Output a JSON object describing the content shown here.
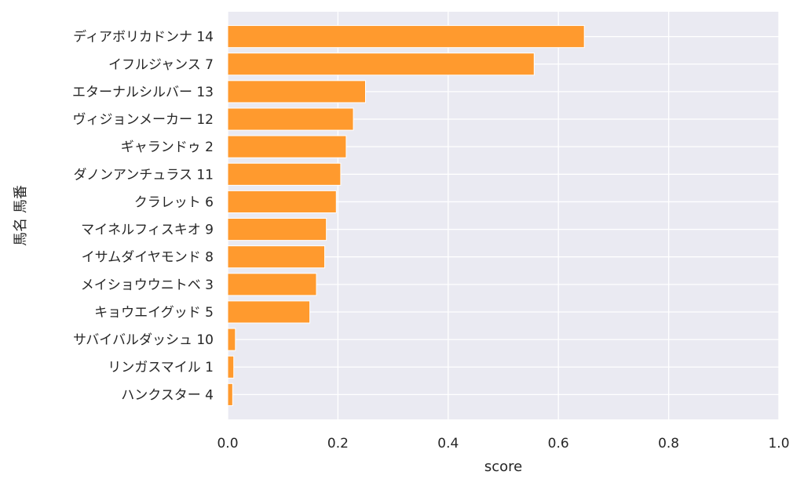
{
  "chart_data": {
    "type": "bar",
    "orientation": "horizontal",
    "categories": [
      "ディアボリカドンナ 14",
      "イフルジャンス 7",
      "エターナルシルバー 13",
      "ヴィジョンメーカー 12",
      "ギャランドゥ 2",
      "ダノンアンチュラス 11",
      "クラレット 6",
      "マイネルフィスキオ 9",
      "イサムダイヤモンド 8",
      "メイショウウニトベ 3",
      "キョウエイグッド 5",
      "サバイバルダッシュ 10",
      "リンガスマイル 1",
      "ハンクスター 4"
    ],
    "values": [
      0.647,
      0.556,
      0.25,
      0.228,
      0.215,
      0.205,
      0.197,
      0.179,
      0.176,
      0.161,
      0.149,
      0.014,
      0.011,
      0.009
    ],
    "xlabel": "score",
    "ylabel": "馬名 馬番",
    "xlim": [
      0,
      1.0
    ],
    "xticks": [
      "0.0",
      "0.2",
      "0.4",
      "0.6",
      "0.8",
      "1.0"
    ],
    "grid": true,
    "bar_color": "#ff9a2e",
    "plot_background": "#eaeaf2",
    "grid_color": "#ffffff"
  }
}
